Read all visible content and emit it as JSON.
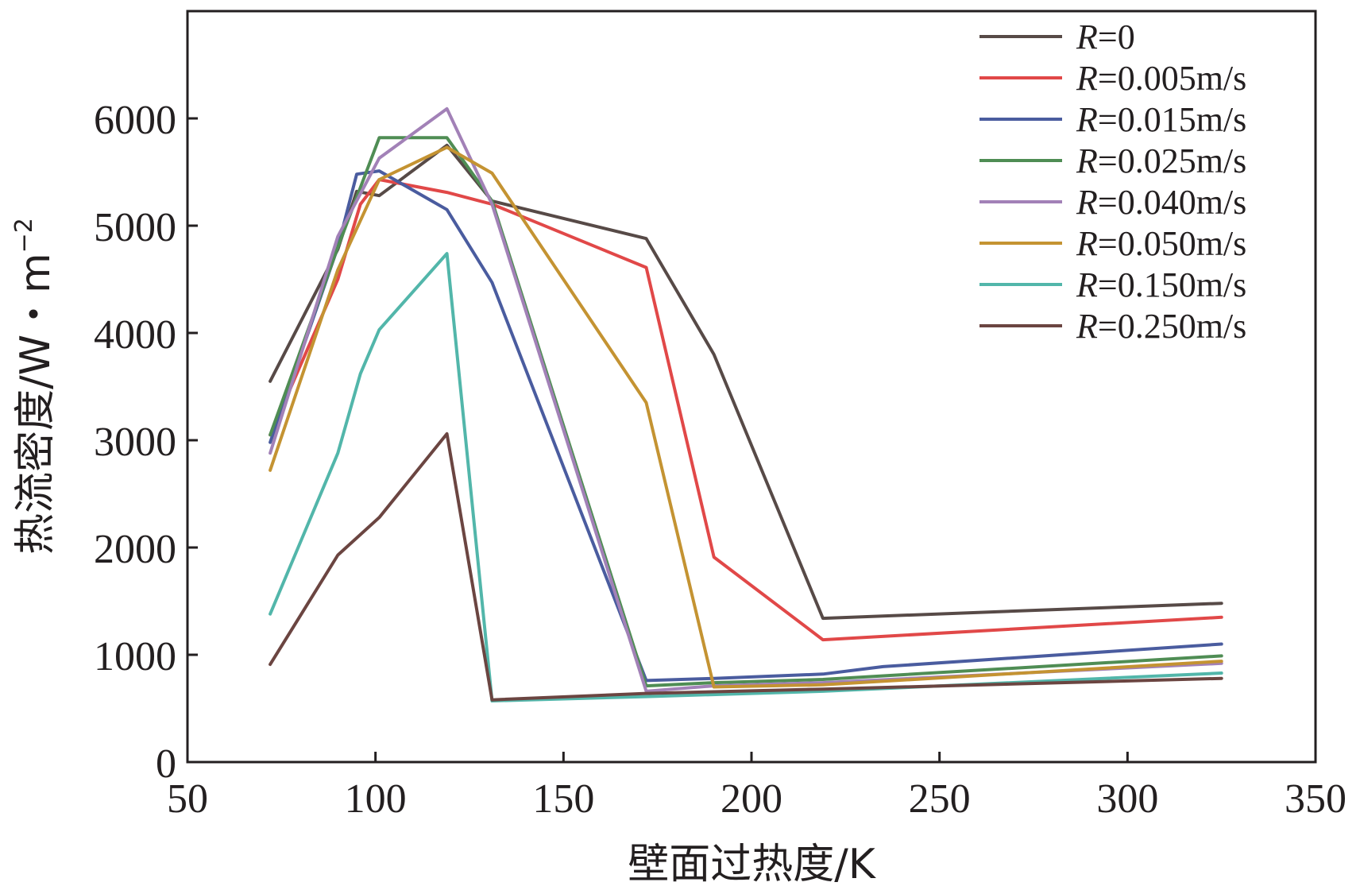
{
  "chart_data": {
    "type": "line",
    "xlabel": "壁面过热度/K",
    "ylabel": "热流密度/W・m",
    "ylabel_sup": "−2",
    "xlim": [
      50,
      350
    ],
    "ylim": [
      0,
      7000
    ],
    "xticks": [
      50,
      100,
      150,
      200,
      250,
      300,
      350
    ],
    "yticks": [
      0,
      1000,
      2000,
      3000,
      4000,
      5000,
      6000
    ],
    "grid": false,
    "legend_position": "top-right",
    "series": [
      {
        "name": "R=0",
        "r": "R",
        "rest": "=0",
        "color": "#574a47",
        "x": [
          72,
          90,
          95,
          101,
          119,
          131,
          172,
          190,
          219,
          325
        ],
        "y": [
          3550,
          4780,
          5320,
          5280,
          5750,
          5230,
          4880,
          3800,
          1340,
          1480
        ]
      },
      {
        "name": "R=0.005m/s",
        "r": "R",
        "rest": "=0.005m/s",
        "color": "#e14848",
        "x": [
          72,
          90,
          96,
          101,
          119,
          131,
          172,
          190,
          219,
          325
        ],
        "y": [
          3050,
          4500,
          5200,
          5430,
          5310,
          5200,
          4610,
          1910,
          1140,
          1350
        ]
      },
      {
        "name": "R=0.015m/s",
        "r": "R",
        "rest": "=0.015m/s",
        "color": "#4a5c9f",
        "x": [
          72,
          90,
          95,
          101,
          119,
          131,
          172,
          190,
          219,
          235,
          325
        ],
        "y": [
          2980,
          4800,
          5480,
          5510,
          5150,
          4470,
          760,
          780,
          820,
          890,
          1100
        ]
      },
      {
        "name": "R=0.025m/s",
        "r": "R",
        "rest": "=0.025m/s",
        "color": "#4f8d54",
        "x": [
          72,
          90,
          101,
          119,
          131,
          172,
          190,
          219,
          325
        ],
        "y": [
          3050,
          4800,
          5820,
          5820,
          5230,
          710,
          740,
          770,
          990
        ]
      },
      {
        "name": "R=0.040m/s",
        "r": "R",
        "rest": "=0.040m/s",
        "color": "#a281b7",
        "x": [
          72,
          90,
          101,
          119,
          131,
          172,
          190,
          219,
          325
        ],
        "y": [
          2880,
          4900,
          5630,
          6090,
          5200,
          660,
          710,
          740,
          920
        ]
      },
      {
        "name": "R=0.050m/s",
        "r": "R",
        "rest": "=0.050m/s",
        "color": "#c49332",
        "x": [
          72,
          90,
          101,
          119,
          131,
          172,
          190,
          219,
          325
        ],
        "y": [
          2720,
          4590,
          5430,
          5730,
          5490,
          3350,
          700,
          720,
          940
        ]
      },
      {
        "name": "R=0.150m/s",
        "r": "R",
        "rest": "=0.150m/s",
        "color": "#52b6aa",
        "x": [
          72,
          90,
          96,
          101,
          119,
          131,
          172,
          219,
          325
        ],
        "y": [
          1380,
          2880,
          3620,
          4030,
          4740,
          570,
          610,
          660,
          830
        ]
      },
      {
        "name": "R=0.250m/s",
        "r": "R",
        "rest": "=0.250m/s",
        "color": "#6b4541",
        "x": [
          72,
          90,
          101,
          119,
          131,
          172,
          219,
          325
        ],
        "y": [
          910,
          1930,
          2280,
          3060,
          580,
          640,
          680,
          780
        ]
      }
    ]
  }
}
